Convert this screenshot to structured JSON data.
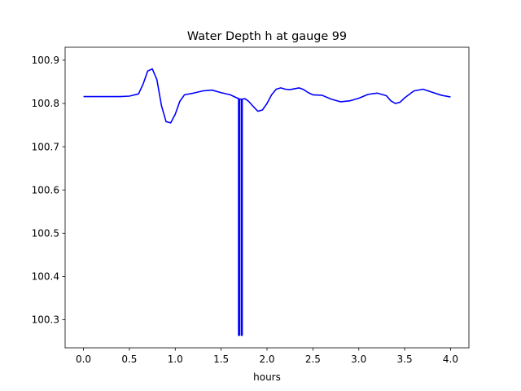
{
  "chart_data": {
    "type": "line",
    "title": "Water Depth h at gauge 99",
    "xlabel": "hours",
    "ylabel": "",
    "xlim": [
      -0.2,
      4.2
    ],
    "ylim": [
      100.235,
      100.93
    ],
    "xticks": [
      0.0,
      0.5,
      1.0,
      1.5,
      2.0,
      2.5,
      3.0,
      3.5,
      4.0
    ],
    "xtick_labels": [
      "0.0",
      "0.5",
      "1.0",
      "1.5",
      "2.0",
      "2.5",
      "3.0",
      "3.5",
      "4.0"
    ],
    "yticks": [
      100.3,
      100.4,
      100.5,
      100.6,
      100.7,
      100.8,
      100.9
    ],
    "ytick_labels": [
      "100.3",
      "100.4",
      "100.5",
      "100.6",
      "100.7",
      "100.8",
      "100.9"
    ],
    "grid": false,
    "series": [
      {
        "color": "#0000ff",
        "points": [
          [
            0.0,
            100.816
          ],
          [
            0.2,
            100.816
          ],
          [
            0.4,
            100.816
          ],
          [
            0.5,
            100.817
          ],
          [
            0.6,
            100.822
          ],
          [
            0.65,
            100.845
          ],
          [
            0.7,
            100.875
          ],
          [
            0.75,
            100.88
          ],
          [
            0.8,
            100.855
          ],
          [
            0.85,
            100.795
          ],
          [
            0.9,
            100.758
          ],
          [
            0.95,
            100.755
          ],
          [
            1.0,
            100.775
          ],
          [
            1.05,
            100.805
          ],
          [
            1.1,
            100.82
          ],
          [
            1.2,
            100.824
          ],
          [
            1.3,
            100.829
          ],
          [
            1.4,
            100.831
          ],
          [
            1.5,
            100.825
          ],
          [
            1.6,
            100.82
          ],
          [
            1.68,
            100.812
          ],
          [
            1.69,
            100.812
          ],
          [
            1.69,
            100.264
          ],
          [
            1.7,
            100.264
          ],
          [
            1.7,
            100.81
          ],
          [
            1.72,
            100.81
          ],
          [
            1.72,
            100.264
          ],
          [
            1.73,
            100.264
          ],
          [
            1.73,
            100.81
          ],
          [
            1.76,
            100.811
          ],
          [
            1.8,
            100.805
          ],
          [
            1.85,
            100.793
          ],
          [
            1.9,
            100.782
          ],
          [
            1.95,
            100.785
          ],
          [
            2.0,
            100.8
          ],
          [
            2.05,
            100.82
          ],
          [
            2.1,
            100.833
          ],
          [
            2.15,
            100.836
          ],
          [
            2.2,
            100.833
          ],
          [
            2.25,
            100.832
          ],
          [
            2.3,
            100.834
          ],
          [
            2.35,
            100.836
          ],
          [
            2.4,
            100.832
          ],
          [
            2.45,
            100.825
          ],
          [
            2.5,
            100.82
          ],
          [
            2.6,
            100.819
          ],
          [
            2.7,
            100.81
          ],
          [
            2.8,
            100.804
          ],
          [
            2.9,
            100.806
          ],
          [
            3.0,
            100.812
          ],
          [
            3.1,
            100.821
          ],
          [
            3.2,
            100.824
          ],
          [
            3.3,
            100.818
          ],
          [
            3.35,
            100.806
          ],
          [
            3.4,
            100.8
          ],
          [
            3.45,
            100.803
          ],
          [
            3.5,
            100.813
          ],
          [
            3.6,
            100.829
          ],
          [
            3.7,
            100.833
          ],
          [
            3.8,
            100.826
          ],
          [
            3.9,
            100.819
          ],
          [
            4.0,
            100.815
          ]
        ]
      }
    ]
  }
}
